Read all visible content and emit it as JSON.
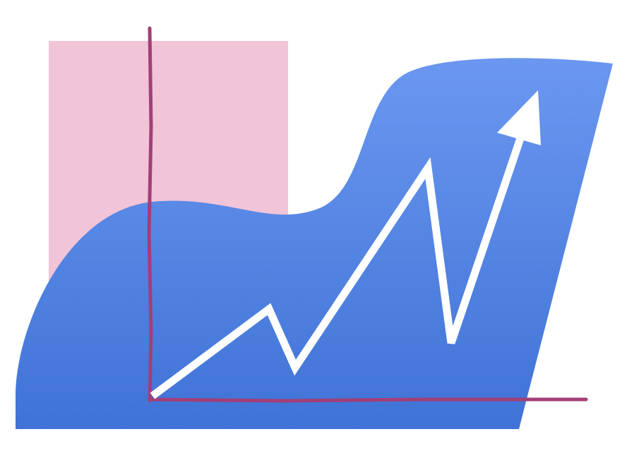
{
  "illustration": {
    "subject": "growth-chart-illustration",
    "colors": {
      "background": "#ffffff",
      "pink_panel": "#f1c4d8",
      "blue_shape_top": "#6b97f0",
      "blue_shape_bottom": "#3f73d6",
      "axes": "#a23f78",
      "trend_line": "#ffffff"
    },
    "icons": [
      "trend-up-arrow-icon"
    ]
  }
}
